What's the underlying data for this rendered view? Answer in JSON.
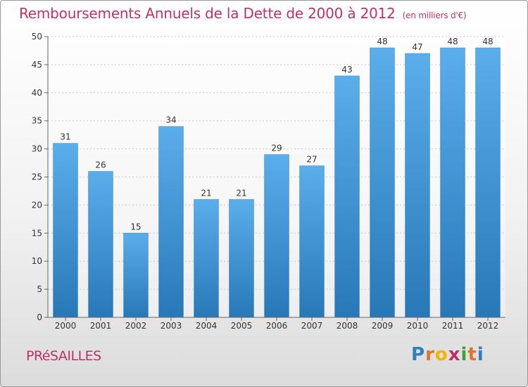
{
  "title": "Remboursements Annuels de la Dette de 2000 à 2012",
  "subtitle": "(en milliers d'€)",
  "place": "PRéSAILLES",
  "logo": {
    "letters": [
      "P",
      "r",
      "o",
      "x",
      "i",
      "t",
      "i"
    ],
    "colors": [
      "#2f7fc1",
      "#e0742b",
      "#f2b400",
      "#c0306a",
      "#3aa23a",
      "#e0742b",
      "#2f7fc1"
    ]
  },
  "colors": {
    "bar": "#4f9fe0",
    "bar_dark": "#2f7fc1",
    "accent": "#c0306a"
  },
  "chart_data": {
    "type": "bar",
    "categories": [
      "2000",
      "2001",
      "2002",
      "2003",
      "2004",
      "2005",
      "2006",
      "2007",
      "2008",
      "2009",
      "2010",
      "2011",
      "2012"
    ],
    "values": [
      31,
      26,
      15,
      34,
      21,
      21,
      29,
      27,
      43,
      48,
      47,
      48,
      48
    ],
    "title": "Remboursements Annuels de la Dette de 2000 à 2012",
    "ylim": [
      0,
      50
    ],
    "yticks": [
      0,
      5,
      10,
      15,
      20,
      25,
      30,
      35,
      40,
      45,
      50
    ],
    "grid": true
  }
}
